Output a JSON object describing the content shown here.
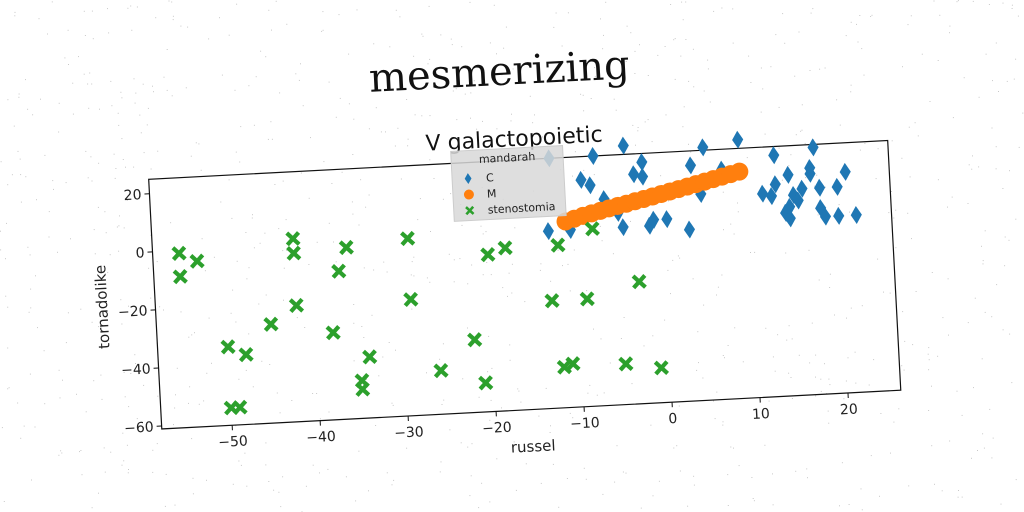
{
  "chart_data": {
    "type": "scatter",
    "suptitle": "mesmerizing",
    "title": "V galactopoietic",
    "xlabel": "russel",
    "ylabel": "tornadolike",
    "xlim": [
      -58,
      26
    ],
    "ylim": [
      -61,
      25
    ],
    "xticks": [
      -50,
      -40,
      -30,
      -20,
      -10,
      0,
      10,
      20
    ],
    "yticks": [
      -60,
      -40,
      -20,
      0,
      20
    ],
    "grid": false,
    "legend": {
      "title": "mandarah",
      "placement": "top-center"
    },
    "colors": {
      "C": "#1f77b4",
      "M": "#ff7f0e",
      "stenostomia": "#2ca02c"
    },
    "series": [
      {
        "name": "C",
        "marker": "diamond",
        "points": [
          [
            -13,
            0
          ],
          [
            -10.5,
            0
          ],
          [
            -12.5,
            25
          ],
          [
            -9,
            17
          ],
          [
            -8,
            15
          ],
          [
            -7.5,
            25
          ],
          [
            -6.5,
            10
          ],
          [
            -5,
            5
          ],
          [
            -4.5,
            0
          ],
          [
            -4,
            28
          ],
          [
            -3,
            18
          ],
          [
            -2,
            17
          ],
          [
            -2,
            22
          ],
          [
            -1.5,
            0
          ],
          [
            -1,
            2
          ],
          [
            0.5,
            2
          ],
          [
            3,
            -2
          ],
          [
            3.5,
            20
          ],
          [
            4.5,
            10
          ],
          [
            5,
            26
          ],
          [
            7,
            18
          ],
          [
            9,
            28
          ],
          [
            11.5,
            9
          ],
          [
            12.5,
            8
          ],
          [
            13,
            12
          ],
          [
            13,
            22
          ],
          [
            14,
            2
          ],
          [
            14.5,
            0
          ],
          [
            14.5,
            4
          ],
          [
            14.5,
            30
          ],
          [
            14.5,
            15
          ],
          [
            15,
            8
          ],
          [
            15.5,
            6
          ],
          [
            16,
            10
          ],
          [
            17,
            15
          ],
          [
            17,
            17
          ],
          [
            17.5,
            24
          ],
          [
            18,
            10
          ],
          [
            18,
            3
          ],
          [
            18.5,
            0
          ],
          [
            19.5,
            32
          ],
          [
            20,
            10
          ],
          [
            20,
            0
          ],
          [
            21,
            15
          ],
          [
            22,
            0
          ]
        ]
      },
      {
        "name": "M",
        "marker": "circle",
        "points": [
          [
            -11,
            3
          ],
          [
            -10,
            3.8
          ],
          [
            -9,
            4.6
          ],
          [
            -8,
            5.3
          ],
          [
            -7,
            6
          ],
          [
            -6,
            6.7
          ],
          [
            -5,
            7.4
          ],
          [
            -4,
            8
          ],
          [
            -3,
            8.7
          ],
          [
            -2,
            9.3
          ],
          [
            -1,
            10
          ],
          [
            0,
            10.7
          ],
          [
            1,
            11.4
          ],
          [
            2,
            12.1
          ],
          [
            3,
            12.8
          ],
          [
            4,
            13.5
          ],
          [
            5,
            14.2
          ],
          [
            6,
            14.9
          ],
          [
            7,
            15.6
          ],
          [
            8,
            16.3
          ],
          [
            9,
            17
          ]
        ]
      },
      {
        "name": "stenostomia",
        "marker": "x",
        "points": [
          [
            -55,
            -1
          ],
          [
            -55,
            -9
          ],
          [
            -53,
            -4
          ],
          [
            -50,
            -34
          ],
          [
            -50,
            -55
          ],
          [
            -49,
            -55
          ],
          [
            -48,
            -37
          ],
          [
            -45,
            -27
          ],
          [
            -42,
            -21
          ],
          [
            -42,
            2
          ],
          [
            -42,
            -3
          ],
          [
            -38,
            -31
          ],
          [
            -37,
            -10
          ],
          [
            -36,
            -2
          ],
          [
            -35,
            -48
          ],
          [
            -35,
            -51
          ],
          [
            -34,
            -40
          ],
          [
            -29,
            0
          ],
          [
            -29,
            -21
          ],
          [
            -26,
            -46
          ],
          [
            -22,
            -36
          ],
          [
            -21,
            -51
          ],
          [
            -20,
            -7
          ],
          [
            -18,
            -5
          ],
          [
            -13,
            -24
          ],
          [
            -12,
            -47
          ],
          [
            -12,
            -5
          ],
          [
            -11,
            -46
          ],
          [
            -9,
            -24
          ],
          [
            -8,
            0
          ],
          [
            -5,
            -47
          ],
          [
            -3,
            -19
          ],
          [
            -1,
            -49
          ]
        ]
      }
    ]
  }
}
